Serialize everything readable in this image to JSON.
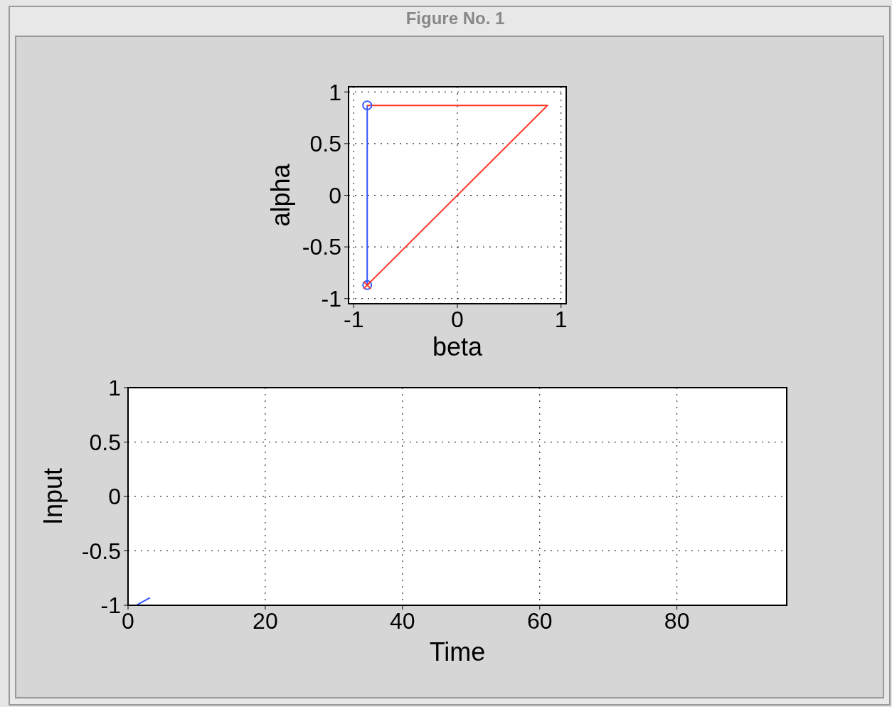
{
  "chart_data": [
    {
      "type": "line",
      "title": "Figure No. 1",
      "xlabel": "beta",
      "ylabel": "alpha",
      "xlim": [
        -1.05,
        1.05
      ],
      "ylim": [
        -1.05,
        1.05
      ],
      "xticks": [
        -1,
        0,
        1
      ],
      "yticks": [
        -1,
        -0.5,
        0,
        0.5,
        1
      ],
      "grid": true,
      "series": [
        {
          "color": "#3355ff",
          "x": [
            -0.87,
            -0.87
          ],
          "values": [
            0.87,
            -0.87
          ],
          "marker": "circle"
        },
        {
          "color": "#ff3322",
          "x": [
            -0.87,
            0.87,
            -0.87
          ],
          "values": [
            -0.87,
            0.87,
            0.87
          ],
          "marker": "none"
        },
        {
          "type": "scatter",
          "color": "#ff3322",
          "x": [
            -0.87
          ],
          "values": [
            -0.87
          ],
          "marker": "cross"
        }
      ]
    },
    {
      "type": "line",
      "xlabel": "Time",
      "ylabel": "Input",
      "xlim": [
        0,
        96
      ],
      "ylim": [
        -1,
        1
      ],
      "xticks": [
        0,
        20,
        40,
        60,
        80
      ],
      "yticks": [
        -1,
        -0.5,
        0,
        0.5,
        1
      ],
      "grid": true,
      "series": [
        {
          "color": "#3355ff",
          "x": [
            1.2,
            3.2
          ],
          "values": [
            -1,
            -0.93
          ]
        }
      ]
    }
  ]
}
